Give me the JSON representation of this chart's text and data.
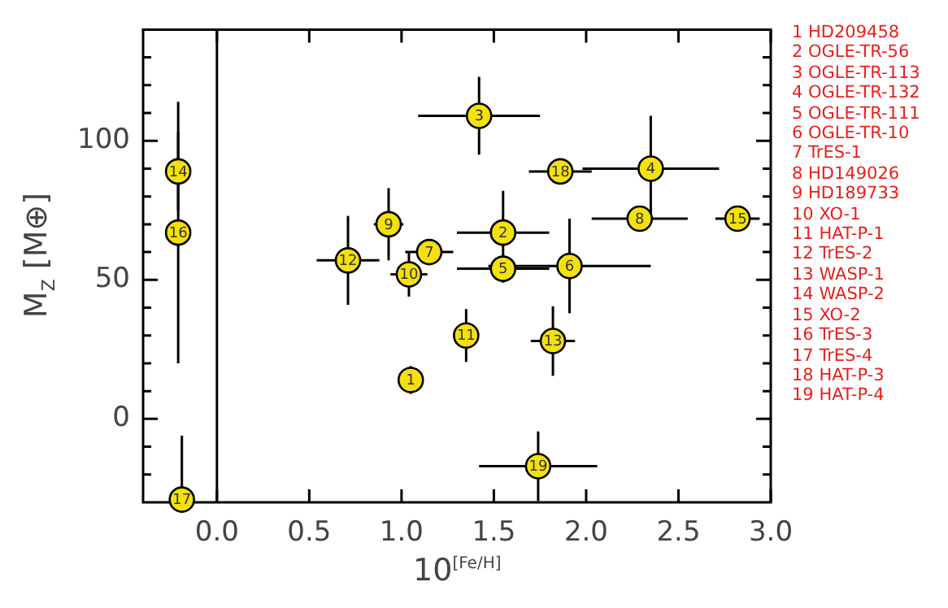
{
  "chart_data": {
    "type": "scatter",
    "xlabel": "10$^{[Fe/H]}$",
    "ylabel": "M$_{Z}$ [M⊕]",
    "xlim": [
      -0.4,
      3.0
    ],
    "ylim": [
      -30,
      140
    ],
    "xticks": [
      {
        "value": 0,
        "label": "0.0"
      },
      0.5,
      {
        "value": 1,
        "label": "1.0"
      },
      1.5,
      {
        "value": 2,
        "label": "2.0"
      },
      2.5,
      {
        "value": 3,
        "label": "3.0"
      }
    ],
    "yticks": [
      {
        "value": -20,
        "label": null
      },
      {
        "value": -10,
        "label": null
      },
      0,
      {
        "value": 10,
        "label": null
      },
      {
        "value": 20,
        "label": null
      },
      {
        "value": 30,
        "label": null
      },
      {
        "value": 40,
        "label": null
      },
      50,
      {
        "value": 60,
        "label": null
      },
      {
        "value": 70,
        "label": null
      },
      {
        "value": 80,
        "label": null
      },
      {
        "value": 90,
        "label": null
      },
      100,
      {
        "value": 110,
        "label": null
      },
      {
        "value": 120,
        "label": null
      },
      {
        "value": 130,
        "label": null
      }
    ],
    "grid": false,
    "marker": "circle",
    "ref_lines": [
      {
        "axis": "x",
        "value": 0,
        "color": "#000000"
      }
    ],
    "series": [
      {
        "color": "#f5e10a",
        "x": [
          1.05,
          1.55,
          1.42,
          2.35,
          1.55,
          1.91,
          1.15,
          2.29,
          0.93,
          1.04,
          1.35,
          0.71,
          1.82,
          -0.21,
          2.82,
          -0.21,
          -0.19,
          1.86,
          1.74
        ],
        "values": [
          14,
          67,
          109,
          90,
          54,
          55,
          60,
          72,
          70,
          52,
          30,
          57,
          28,
          89,
          72,
          67,
          -29,
          89,
          -17
        ],
        "errors": [
          5,
          15,
          14,
          19,
          5,
          17,
          3,
          4,
          13,
          8,
          9.5,
          16,
          12.5,
          14,
          3,
          47,
          [
            -30,
            -6
          ],
          3,
          12.5
        ],
        "xerrors": [
          null,
          0.25,
          0.33,
          0.37,
          0.25,
          0.44,
          0.13,
          0.26,
          0.08,
          0.1,
          null,
          0.17,
          0.12,
          null,
          0.12,
          null,
          null,
          0.17,
          0.32
        ]
      }
    ],
    "annotations": [
      {
        "text": "1",
        "x": 1.05,
        "y": 14
      },
      {
        "text": "2",
        "x": 1.55,
        "y": 67
      },
      {
        "text": "3",
        "x": 1.42,
        "y": 109
      },
      {
        "text": "4",
        "x": 2.35,
        "y": 90
      },
      {
        "text": "5",
        "x": 1.55,
        "y": 54
      },
      {
        "text": "6",
        "x": 1.91,
        "y": 55
      },
      {
        "text": "7",
        "x": 1.15,
        "y": 60
      },
      {
        "text": "8",
        "x": 2.29,
        "y": 72
      },
      {
        "text": "9",
        "x": 0.93,
        "y": 70
      },
      {
        "text": "10",
        "x": 1.04,
        "y": 52
      },
      {
        "text": "11",
        "x": 1.35,
        "y": 30
      },
      {
        "text": "12",
        "x": 0.71,
        "y": 57
      },
      {
        "text": "13",
        "x": 1.82,
        "y": 28
      },
      {
        "text": "14",
        "x": -0.21,
        "y": 89
      },
      {
        "text": "15",
        "x": 2.82,
        "y": 72
      },
      {
        "text": "16",
        "x": -0.21,
        "y": 67
      },
      {
        "text": "17",
        "x": -0.19,
        "y": -29
      },
      {
        "text": "18",
        "x": 1.86,
        "y": 89
      },
      {
        "text": "19",
        "x": 1.74,
        "y": -17
      },
      "1 HD209458",
      "2 OGLE-TR-56",
      "3 OGLE-TR-113",
      "4 OGLE-TR-132",
      "5 OGLE-TR-111",
      "6 OGLE-TR-10",
      "7 TrES-1",
      "8 HD149026",
      "9 HD189733",
      "10 XO-1",
      "11 HAT-P-1",
      "12 TrES-2",
      "13 WASP-1",
      "14 WASP-2",
      "15 XO-2",
      "16 TrES-3",
      "17 TrES-4",
      "18 HAT-P-3",
      "19 HAT-P-4"
    ]
  }
}
